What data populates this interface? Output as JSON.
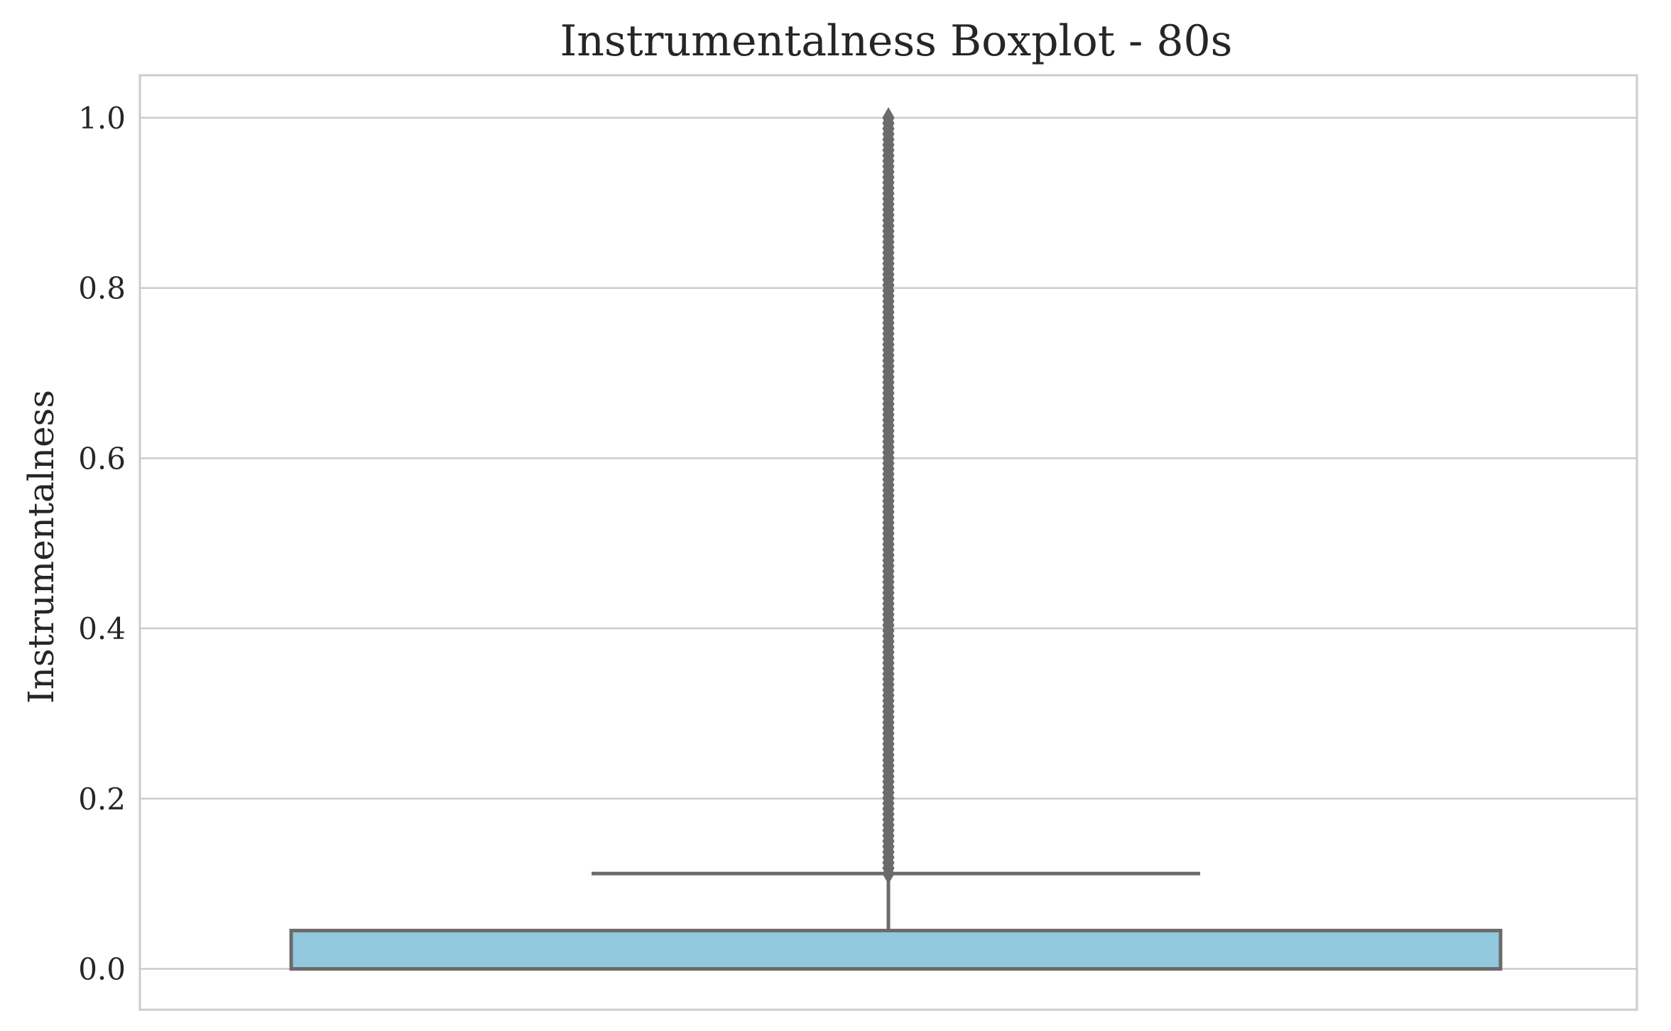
{
  "chart_data": {
    "type": "boxplot",
    "title": "Instrumentalness Boxplot - 80s",
    "ylabel": "Instrumentalness",
    "xlabel": "",
    "ylim": [
      -0.048,
      1.05
    ],
    "yticks": [
      0.0,
      0.2,
      0.4,
      0.6,
      0.8,
      1.0
    ],
    "ytick_labels": [
      "0.0",
      "0.2",
      "0.4",
      "0.6",
      "0.8",
      "1.0"
    ],
    "grid": "horizontal",
    "box": {
      "q1": 0.0,
      "median": 0.0,
      "q3": 0.045,
      "whisker_low": 0.0,
      "whisker_high": 0.112
    },
    "outliers": {
      "min": 0.112,
      "max": 1.0
    },
    "colors": {
      "box_fill": "#92c8de",
      "box_edge": "#6b6b6b",
      "grid": "#cccccc",
      "spine": "#cccccc"
    }
  }
}
